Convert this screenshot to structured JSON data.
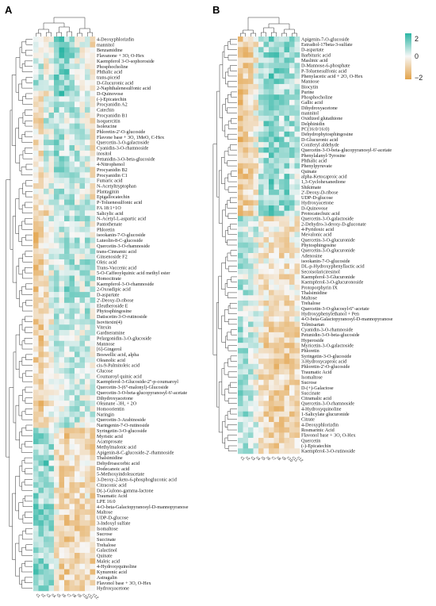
{
  "chart_data": [
    {
      "type": "heatmap",
      "panel_label": "A",
      "value_range": [
        -2,
        2
      ],
      "columns": [
        "c1",
        "c2",
        "c3",
        "c4",
        "c5",
        "c6",
        "c7",
        "c8",
        "c9",
        "c10",
        "c11",
        "c12"
      ],
      "rows": [
        "4-Deoxyphlorizdin",
        "mannitol",
        "Benzamidine",
        "Flavanone + 3O, O-Hex",
        "Kaempferol 3-O-sophoroside",
        "Phosphocholine",
        "Phthalic acid",
        "trans-piceid",
        "D-Glucuronic acid",
        "2-Naphthalenesulfonic acid",
        "D-Quinovose",
        "(-)-Epicatechin",
        "Procyanidin A2",
        "Catechin",
        "Procyanidin B1",
        "Isoquercitin",
        "Isoleucine",
        "Phloretin-2'-O-glucoside",
        "Flavone base + 3O, 1MeO, C-Hex",
        "Quercetin-3-O-galactoside",
        "Cyanidin-3-O-rhamnoside",
        "inositol",
        "Petunidin-3-O-beta-glucoside",
        "4-Nitrophenol",
        "Procyanidin B2",
        "Procyanidin C1",
        "Fumaric acid",
        "N-Acetyltryptophan",
        "Plantaginin",
        "Epigallocatechin",
        "P-Toluenesulfonic acid",
        "FA 18:1+1O",
        "Salicylic acid",
        "N-Acetyl-L-aspartic acid",
        "Pantothenate",
        "Phloretin",
        "isookanin-7-O-glucoside",
        "Luteolin-8-C-glucoside",
        "Quercetin-3-O-rhamnoside",
        "trans-Cinnamic acid",
        "Ginsenoside F2",
        "Oleic acid",
        "Trans-Vaccenic acid",
        "5-O-Caffeoylquinic acid methyl ester",
        "Homocitrate",
        "Kaempferol-3-O-rhamnoside",
        "2-Oxoadipic acid",
        "D-aspartate",
        "2'-Deoxy-D-ribose",
        "Eleutheroside E",
        "Phytosphingosine",
        "Datiscetin-3-O-rutinoside",
        "Isovitexin(4)",
        "Vitexin",
        "Gardneramine",
        "Pelargonidin-3-O-glucoside",
        "Mannose",
        "[6]-Gingerol",
        "Boswellic acid, alpha",
        "Oleanolic acid",
        "cis-9-Palmitoleic acid",
        "Glucose",
        "Coumaroyl quinic acid",
        "Kaempferol-3-Glucoside-2''-p-coumaroyl",
        "Quercetin-3-(6''-malonyl)-Glucoside",
        "Quercetin-3-O-beta-glucopyranosyl-6'-acetate",
        "Dihydroxyacetone",
        "Oleanane -3H, + 2O",
        "Homoorientin",
        "Naringin",
        "Quercetin-3-Arabinoside",
        "Naringenin-7-O-rutinoside",
        "Syringetin-3-O-glucoside",
        "Myristic acid",
        "Acamprosate",
        "Methylmalonic acid",
        "Apigenin-8-C-glucoside-2'-rhamnoside",
        "Thalsimidine",
        "Dehydroascorbic acid",
        "Dodecanoic acid",
        "5-Methoxyindoleacetate",
        "3-Deoxy-2-keto-6-phosphogluconic acid",
        "Citraconic acid",
        "D(-)-Gulono-gamma-lactone",
        "Traumatic Acid",
        "LPE 16:0",
        "4-O-beta-Galactopyranosyl-D-mannopyranose",
        "Maltose",
        "UDP-D-glucose",
        "3-Indoxyl sulfate",
        "Isomaltose",
        "Sucrose",
        "Succinate",
        "Trehalose",
        "Galactinol",
        "Quinate",
        "Maleic acid",
        "4-Hydroxyquinoline",
        "Kynurenic acid",
        "Astragalin",
        "Flavonol base + 3O, O-Hex",
        "Hydroxyacetone"
      ]
    },
    {
      "type": "heatmap",
      "panel_label": "B",
      "value_range": [
        -2,
        2
      ],
      "legend_ticks": [
        "2",
        "0",
        "−2"
      ],
      "columns": [
        "c1",
        "c2",
        "c3",
        "c4",
        "c5",
        "c6",
        "c7",
        "c8",
        "c9",
        "c10",
        "c11",
        "c12"
      ],
      "rows": [
        "Apigenin-7-O-glucoside",
        "Estradiol-17beta-3-sulfate",
        "D-aspartate",
        "Barbituric acid",
        "Maslinic acid",
        "D-Mannose-6-phosphate",
        "P-Toluenesulfonic acid",
        "Phenylacetic acid + 2O, O-Hex",
        "Mannose",
        "Biocytin",
        "Purine",
        "Phosphocholine",
        "Gallic acid",
        "Dihydroxyacetone",
        "mannitol",
        "Oxidized glutathione",
        "Delphinidin",
        "PC(16:0/16:0)",
        "Dehydrophytosphingosine",
        "D-Glucuronic acid",
        "Coniferyl aldehyde",
        "Quercetin-3-O-beta-glucopyranosyl-6'-acetate",
        "Phenylalanyl-Tyrosine",
        "Phthalic acid",
        "Phenylpyruvate",
        "Quinate",
        "alpha-Ketocaproic acid",
        "1,3-Cyclohexanedione",
        "Shikimate",
        "2'-Deoxy-D-ribose",
        "UDP-D-glucose",
        "Hydroxyacetone",
        "D-Quinovose",
        "Protocatechuic acid",
        "Quercetin-3-O-galactoside",
        "2-Dehydro-3-deoxy-D-gluconate",
        "4-Pyridoxic acid",
        "Mevalonic acid",
        "Quercetin-3-O-glucuronide",
        "Phytosphingosine",
        "Quercetin-3-O-glucuronide",
        "Adenosine",
        "isookanin-7-O-glucoside",
        "DL-p-Hydroxyphenyllactic acid",
        "Secoisolariciresinol",
        "Kaempferol-3-Glucuronide",
        "Kaempferol-3-O-glucuronoside",
        "Protoporphyrin IX",
        "Thalsimidine",
        "Maltose",
        "Trehalose",
        "Quercetin-3-O-glucosyl-6''-acetate",
        "Hydroxyphenylethanol + Pen",
        "4-O-beta-Galactopyranosyl-D-mannopyranose",
        "Telmisartan",
        "Cyanidin-3-O-rhamnoside",
        "Petunidin-3-O-beta-glucoside",
        "Hyperoside",
        "Myricetin-3-O-galactoside",
        "Phloretin",
        "Syringetin-3-O-glucoside",
        "3-Hydroxycaproic acid",
        "Phloretin-2'-O-glucoside",
        "Traumatic Acid",
        "Isomaltose",
        "Sucrose",
        "D-(+)-Galactose",
        "Succinate",
        "Citramalic acid",
        "Quercetin-3-O-rhamnoside",
        "4-Hydroxyquinoline",
        "1-Salicylate glucuronide",
        "Citrate",
        "4-Deoxyphlorizdin",
        "Rosmarinic Acid",
        "Flavonol base + 3O, O-Hex",
        "Quercetin",
        "(-)-Epicatechin",
        "Kaempferol-3-O-rutinoside"
      ]
    }
  ]
}
